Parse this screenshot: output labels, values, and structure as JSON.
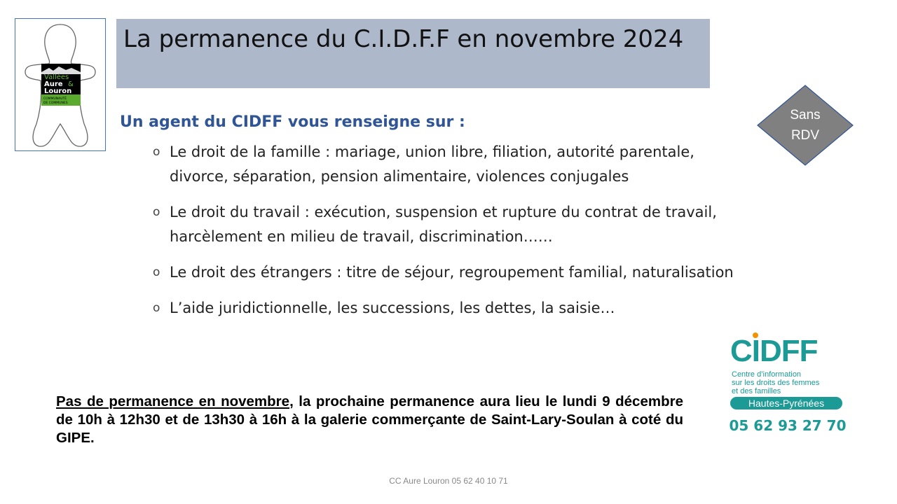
{
  "title": "La permanence du C.I.D.F.F en novembre 2024",
  "logo_left": {
    "line1": "Vallées",
    "line2": "Aure",
    "amp": "&",
    "line3": "Louron",
    "line4": "COMMUNAUTÉ",
    "line5": "DE COMMUNES"
  },
  "subtitle": "Un agent du CIDFF vous renseigne sur :",
  "bullets": [
    "Le droit de la famille : mariage, union libre, filiation, autorité parentale, divorce, séparation, pension alimentaire, violences conjugales",
    "Le droit du travail : exécution, suspension et rupture du contrat de travail, harcèlement en milieu de travail, discrimination……",
    "Le droit des étrangers : titre de séjour, regroupement familial, naturalisation",
    "L’aide juridictionnelle, les successions, les dettes, la saisie…"
  ],
  "bullet_glyph": "o",
  "badge": {
    "line1": "Sans",
    "line2": "RDV",
    "color": "#808080"
  },
  "notice": {
    "underlined": "Pas de permanence en novembre",
    "rest": ",  la prochaine permanence aura lieu le lundi 9 décembre de 10h à 12h30 et de 13h30 à 16h à la galerie commerçante de Saint-Lary-Soulan à coté du GIPE."
  },
  "cidff_logo": {
    "name": "CIDFF",
    "desc1": "Centre d’information",
    "desc2": "sur les droits des femmes",
    "desc3": "et des familles",
    "region": "Hautes-Pyrénées",
    "phone": "05 62 93 27 70",
    "teal": "#1b9a96",
    "orange": "#f39200"
  },
  "footer": "CC Aure Louron 05 62 40 10 71"
}
